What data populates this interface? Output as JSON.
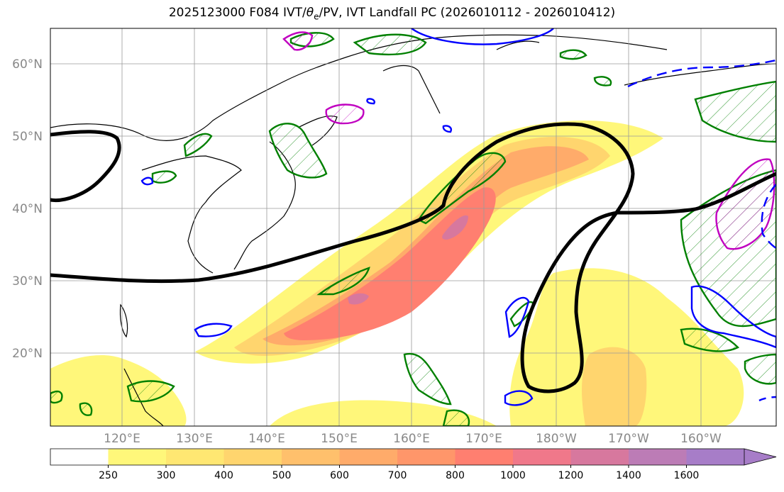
{
  "title": {
    "prefix": "2025123000 F084 IVT/",
    "theta": "θ",
    "theta_sub": "e",
    "suffix": "/PV, IVT Landfall PC (2026010112 - 2026010412)"
  },
  "map": {
    "lat_labels": [
      "60°N",
      "50°N",
      "40°N",
      "30°N",
      "20°N"
    ],
    "lon_labels": [
      "120°E",
      "130°E",
      "140°E",
      "150°E",
      "160°E",
      "170°E",
      "180°W",
      "170°W",
      "160°W"
    ]
  },
  "colorbar": {
    "levels": [
      "250",
      "300",
      "400",
      "500",
      "600",
      "700",
      "800",
      "1000",
      "1200",
      "1400",
      "1600"
    ],
    "colors": [
      "#ffffff",
      "#fff77a",
      "#ffe772",
      "#ffd56e",
      "#ffc06c",
      "#ffab6a",
      "#ff966a",
      "#ff7f70",
      "#f0788a",
      "#d7789e",
      "#bc7cb6",
      "#a77dc8"
    ]
  },
  "colors": {
    "ivt_contour": "#ff8080",
    "pv_green": "#008000",
    "theta_blue": "#0000ff",
    "magenta": "#c000c0",
    "black_line": "#000000"
  }
}
